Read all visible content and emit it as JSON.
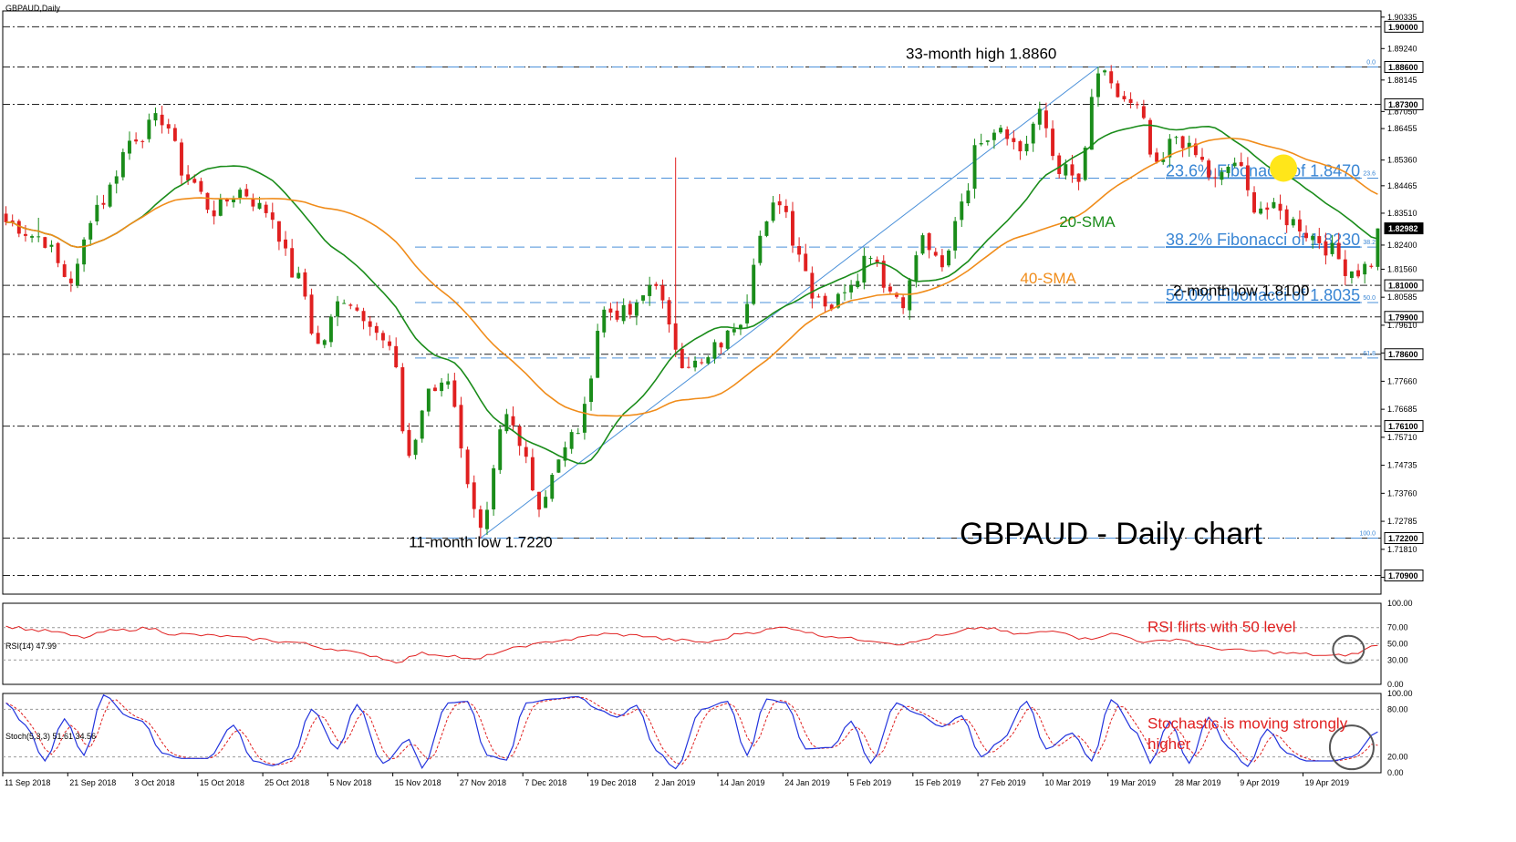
{
  "chart_data": {
    "type": "candlestick",
    "symbol_label": "GBPAUD,Daily",
    "title": "GBPAUD - Daily chart",
    "colors": {
      "bull": "#1a8c1a",
      "bear": "#e02020",
      "sma20": "#1a8c1a",
      "sma40": "#f08c1a",
      "fib": "#4a90d9",
      "fib_text": "#3a86d4",
      "rsi": "#e02020",
      "stoch_main": "#2233dd",
      "stoch_signal": "#e02020",
      "annotation_red": "#e02020",
      "highlight": "#ffe61a",
      "axis_text": "#000000"
    },
    "price_axis": {
      "ylim": [
        1.7025,
        1.9055
      ],
      "ticks": [
        "1.90335",
        "1.89240",
        "1.88145",
        "1.87050",
        "1.86455",
        "1.85360",
        "1.84465",
        "1.83510",
        "1.82400",
        "1.81560",
        "1.80585",
        "1.79610",
        "1.78645",
        "1.77660",
        "1.76685",
        "1.75710",
        "1.74735",
        "1.73760",
        "1.72785",
        "1.71810",
        "1.70835"
      ],
      "tick_values": [
        1.90335,
        1.8924,
        1.88145,
        1.8705,
        1.86455,
        1.8536,
        1.84465,
        1.8351,
        1.824,
        1.8156,
        1.80585,
        1.7961,
        1.78645,
        1.7766,
        1.76685,
        1.7571,
        1.74735,
        1.7376,
        1.72785,
        1.7181,
        1.70835
      ],
      "boxed_levels": [
        "1.90000",
        "1.88600",
        "1.87300",
        "1.82982",
        "1.81000",
        "1.79900",
        "1.78600",
        "1.76100",
        "1.72200",
        "1.70900"
      ],
      "boxed_values": [
        1.9,
        1.886,
        1.873,
        1.82982,
        1.81,
        1.799,
        1.786,
        1.761,
        1.722,
        1.709
      ]
    },
    "support_resistance_lines": [
      1.9,
      1.886,
      1.873,
      1.81,
      1.799,
      1.786,
      1.761,
      1.722,
      1.709
    ],
    "fibonacci": {
      "high": 1.886,
      "low": 1.722,
      "levels": [
        {
          "ratio_label": "0.0",
          "value": 1.886
        },
        {
          "ratio_label": "23.6",
          "value": 1.8473
        },
        {
          "ratio_label": "38.2",
          "value": 1.8233
        },
        {
          "ratio_label": "50.0",
          "value": 1.804
        },
        {
          "ratio_label": "61.8",
          "value": 1.7847
        },
        {
          "ratio_label": "100.0",
          "value": 1.722
        }
      ],
      "callouts": [
        {
          "text": "23.6% Fibonacci of 1.8470",
          "value": 1.8473
        },
        {
          "text": "38.2% Fibonacci of 1.8230",
          "value": 1.8233
        },
        {
          "text": "50.0% Fibonacci of 1.8035",
          "value": 1.804
        }
      ]
    },
    "annotations": [
      {
        "text": "33-month high 1.8860",
        "x": 150,
        "y": 1.8888
      },
      {
        "text": "11-month low 1.7220",
        "x": 73,
        "y": 1.7188
      },
      {
        "text": "2-month low 1.8100",
        "x": 190,
        "y": 1.8064
      },
      {
        "text": "20-SMA",
        "x": 162,
        "y": 1.8303,
        "color_key": "sma20"
      },
      {
        "text": "40-SMA",
        "x": 156,
        "y": 1.8107,
        "color_key": "sma40"
      }
    ],
    "crossover_highlight": {
      "x": 196.5,
      "y": 1.8508
    },
    "trend_line": {
      "from": [
        73,
        1.722
      ],
      "to": [
        168,
        1.886
      ]
    },
    "x_axis": {
      "count": 212,
      "labels": [
        "11 Sep 2018",
        "21 Sep 2018",
        "3 Oct 2018",
        "15 Oct 2018",
        "25 Oct 2018",
        "5 Nov 2018",
        "15 Nov 2018",
        "27 Nov 2018",
        "7 Dec 2018",
        "19 Dec 2018",
        "2 Jan 2019",
        "14 Jan 2019",
        "24 Jan 2019",
        "5 Feb 2019",
        "15 Feb 2019",
        "27 Feb 2019",
        "10 Mar 2019",
        "19 Mar 2019",
        "28 Mar 2019",
        "9 Apr 2019",
        "19 Apr 2019"
      ],
      "label_x": [
        0,
        10,
        20,
        30,
        40,
        50,
        60,
        70,
        80,
        90,
        100,
        110,
        120,
        130,
        140,
        150,
        160,
        170,
        180,
        190,
        200
      ]
    },
    "price_anchors": [
      [
        0,
        1.832
      ],
      [
        5,
        1.827
      ],
      [
        10,
        1.812
      ],
      [
        14,
        1.838
      ],
      [
        20,
        1.862
      ],
      [
        24,
        1.868
      ],
      [
        28,
        1.847
      ],
      [
        32,
        1.836
      ],
      [
        36,
        1.843
      ],
      [
        40,
        1.836
      ],
      [
        45,
        1.812
      ],
      [
        48,
        1.789
      ],
      [
        52,
        1.806
      ],
      [
        55,
        1.8
      ],
      [
        59,
        1.788
      ],
      [
        62,
        1.751
      ],
      [
        65,
        1.772
      ],
      [
        68,
        1.778
      ],
      [
        71,
        1.743
      ],
      [
        73,
        1.724
      ],
      [
        77,
        1.763
      ],
      [
        80,
        1.75
      ],
      [
        82,
        1.733
      ],
      [
        85,
        1.75
      ],
      [
        88,
        1.76
      ],
      [
        92,
        1.801
      ],
      [
        96,
        1.8
      ],
      [
        100,
        1.812
      ],
      [
        102,
        1.794
      ],
      [
        104,
        1.784
      ],
      [
        107,
        1.782
      ],
      [
        110,
        1.79
      ],
      [
        113,
        1.799
      ],
      [
        116,
        1.827
      ],
      [
        119,
        1.84
      ],
      [
        122,
        1.822
      ],
      [
        124,
        1.808
      ],
      [
        127,
        1.803
      ],
      [
        130,
        1.812
      ],
      [
        133,
        1.822
      ],
      [
        136,
        1.808
      ],
      [
        138,
        1.805
      ],
      [
        141,
        1.826
      ],
      [
        144,
        1.815
      ],
      [
        147,
        1.84
      ],
      [
        150,
        1.862
      ],
      [
        153,
        1.866
      ],
      [
        156,
        1.857
      ],
      [
        159,
        1.869
      ],
      [
        162,
        1.851
      ],
      [
        165,
        1.846
      ],
      [
        168,
        1.884
      ],
      [
        171,
        1.876
      ],
      [
        174,
        1.871
      ],
      [
        177,
        1.85
      ],
      [
        180,
        1.862
      ],
      [
        183,
        1.855
      ],
      [
        186,
        1.846
      ],
      [
        189,
        1.853
      ],
      [
        192,
        1.838
      ],
      [
        195,
        1.836
      ],
      [
        198,
        1.832
      ],
      [
        201,
        1.827
      ],
      [
        204,
        1.822
      ],
      [
        206,
        1.816
      ],
      [
        208,
        1.815
      ],
      [
        210,
        1.818
      ],
      [
        211,
        1.8298
      ]
    ],
    "rsi": {
      "label": "RSI(14) 47.99",
      "ylim": [
        0,
        100
      ],
      "ticks": [
        "100.00",
        "70.00",
        "50.00",
        "30.00",
        "0.00"
      ],
      "tick_values": [
        100,
        70,
        50,
        30,
        0
      ],
      "anchors": [
        [
          0,
          71
        ],
        [
          6,
          66
        ],
        [
          12,
          58
        ],
        [
          16,
          66
        ],
        [
          22,
          69
        ],
        [
          26,
          62
        ],
        [
          32,
          60
        ],
        [
          38,
          56
        ],
        [
          44,
          52
        ],
        [
          50,
          44
        ],
        [
          56,
          36
        ],
        [
          60,
          28
        ],
        [
          64,
          38
        ],
        [
          68,
          36
        ],
        [
          72,
          30
        ],
        [
          76,
          40
        ],
        [
          80,
          48
        ],
        [
          86,
          55
        ],
        [
          92,
          62
        ],
        [
          98,
          60
        ],
        [
          102,
          55
        ],
        [
          108,
          52
        ],
        [
          114,
          64
        ],
        [
          120,
          70
        ],
        [
          126,
          60
        ],
        [
          132,
          55
        ],
        [
          138,
          50
        ],
        [
          144,
          60
        ],
        [
          150,
          70
        ],
        [
          156,
          62
        ],
        [
          162,
          66
        ],
        [
          166,
          56
        ],
        [
          170,
          62
        ],
        [
          176,
          52
        ],
        [
          180,
          56
        ],
        [
          186,
          44
        ],
        [
          192,
          41
        ],
        [
          198,
          38
        ],
        [
          204,
          35
        ],
        [
          207,
          37
        ],
        [
          211,
          47.99
        ]
      ],
      "callout": "RSI flirts with 50 level",
      "circle": {
        "x": 206.5,
        "y": 43
      }
    },
    "stoch": {
      "label": "Stoch(5,3,3) 51.61 34.56",
      "ylim": [
        0,
        100
      ],
      "ticks": [
        "100.00",
        "80.00",
        "20.00",
        "0.00"
      ],
      "tick_values": [
        100,
        80,
        20,
        0
      ],
      "k_anchors": [
        [
          0,
          88
        ],
        [
          3,
          60
        ],
        [
          6,
          15
        ],
        [
          9,
          68
        ],
        [
          12,
          22
        ],
        [
          15,
          98
        ],
        [
          19,
          70
        ],
        [
          21,
          65
        ],
        [
          24,
          25
        ],
        [
          27,
          18
        ],
        [
          31,
          18
        ],
        [
          35,
          60
        ],
        [
          38,
          15
        ],
        [
          41,
          9
        ],
        [
          44,
          18
        ],
        [
          47,
          80
        ],
        [
          51,
          30
        ],
        [
          54,
          86
        ],
        [
          58,
          12
        ],
        [
          62,
          42
        ],
        [
          64,
          6
        ],
        [
          68,
          88
        ],
        [
          71,
          90
        ],
        [
          74,
          22
        ],
        [
          77,
          16
        ],
        [
          80,
          88
        ],
        [
          84,
          93
        ],
        [
          88,
          96
        ],
        [
          91,
          80
        ],
        [
          94,
          70
        ],
        [
          97,
          85
        ],
        [
          100,
          28
        ],
        [
          103,
          5
        ],
        [
          107,
          80
        ],
        [
          111,
          90
        ],
        [
          114,
          22
        ],
        [
          117,
          93
        ],
        [
          120,
          88
        ],
        [
          123,
          30
        ],
        [
          127,
          32
        ],
        [
          130,
          65
        ],
        [
          133,
          12
        ],
        [
          137,
          88
        ],
        [
          140,
          75
        ],
        [
          144,
          58
        ],
        [
          147,
          72
        ],
        [
          150,
          20
        ],
        [
          153,
          40
        ],
        [
          157,
          90
        ],
        [
          160,
          30
        ],
        [
          164,
          50
        ],
        [
          167,
          15
        ],
        [
          170,
          92
        ],
        [
          174,
          50
        ],
        [
          176,
          12
        ],
        [
          179,
          65
        ],
        [
          182,
          12
        ],
        [
          185,
          70
        ],
        [
          188,
          32
        ],
        [
          191,
          8
        ],
        [
          194,
          55
        ],
        [
          197,
          25
        ],
        [
          200,
          15
        ],
        [
          204,
          15
        ],
        [
          207,
          20
        ],
        [
          211,
          51.61
        ]
      ],
      "callout_line1": "Stochastic is moving strongly",
      "callout_line2": "higher",
      "circle": {
        "x": 207,
        "y": 32
      }
    }
  }
}
